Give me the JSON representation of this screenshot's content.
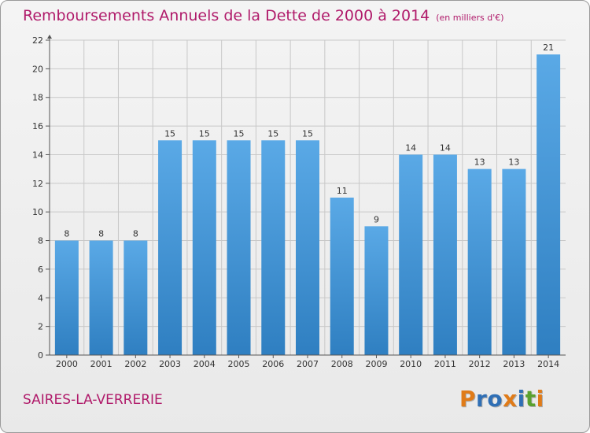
{
  "header": {
    "title": "Remboursements Annuels de la Dette de 2000 à 2014",
    "unit": "(en milliers d'€)"
  },
  "footer": {
    "commune": "SAIRES-LA-VERRERIE",
    "logo_text": "Proxiti",
    "logo_colors": [
      "#e07b18",
      "#2f6fb5",
      "#2f6fb5",
      "#e07b18",
      "#2f6fb5",
      "#5aa12e",
      "#e07b18"
    ]
  },
  "chart_data": {
    "type": "bar",
    "title": "Remboursements Annuels de la Dette de 2000 à 2014",
    "subtitle": "(en milliers d'€)",
    "xlabel": "",
    "ylabel": "",
    "categories": [
      "2000",
      "2001",
      "2002",
      "2003",
      "2004",
      "2005",
      "2006",
      "2007",
      "2008",
      "2009",
      "2010",
      "2011",
      "2012",
      "2013",
      "2014"
    ],
    "values": [
      8,
      8,
      8,
      15,
      15,
      15,
      15,
      15,
      11,
      9,
      14,
      14,
      13,
      13,
      21
    ],
    "ylim": [
      0,
      22
    ],
    "yticks": [
      0,
      2,
      4,
      6,
      8,
      10,
      12,
      14,
      16,
      18,
      20,
      22
    ],
    "grid": true,
    "legend": "none",
    "bar_color_top": "#5aa9e6",
    "bar_color_bottom": "#2f7fc1",
    "grid_color": "#c8c8c8"
  }
}
